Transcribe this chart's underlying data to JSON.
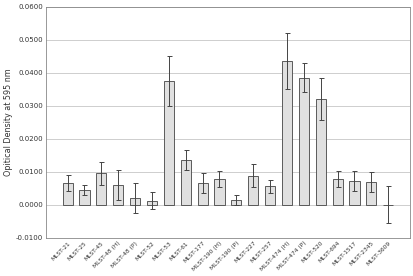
{
  "categories": [
    "MLST-21",
    "MLST-25",
    "MLST-45",
    "MLST-48 (H)",
    "MLST-48 (P)",
    "MLST-52",
    "MLST-53",
    "MLST-61",
    "MLST-177",
    "MLST-190 (H)",
    "MLST-190 (P)",
    "MLST-227",
    "MLST-257",
    "MLST-474 (H)",
    "MLST-474 (P)",
    "MLST-520",
    "MLST-694",
    "MLST-1517",
    "MLST-2345",
    "MLST-3609"
  ],
  "values": [
    0.0065,
    0.0045,
    0.0095,
    0.006,
    0.002,
    0.0012,
    0.0375,
    0.0135,
    0.0065,
    0.0078,
    0.0015,
    0.0088,
    0.0055,
    0.0435,
    0.0385,
    0.032,
    0.0078,
    0.0072,
    0.0068,
    0.0
  ],
  "errors": [
    0.0025,
    0.0015,
    0.0035,
    0.0045,
    0.0045,
    0.0025,
    0.0075,
    0.003,
    0.003,
    0.0025,
    0.0015,
    0.0035,
    0.002,
    0.0085,
    0.0045,
    0.0065,
    0.0025,
    0.003,
    0.003,
    0.0055
  ],
  "bar_color": "#e0e0e0",
  "bar_edge_color": "#444444",
  "error_color": "#444444",
  "ylabel": "Opitical Density at 595 nm",
  "ylim": [
    -0.01,
    0.06
  ],
  "yticks": [
    -0.01,
    0.0,
    0.01,
    0.02,
    0.03,
    0.04,
    0.05,
    0.06
  ],
  "ytick_labels": [
    "-0.0100",
    "0.0000",
    "0.0100",
    "0.0200",
    "0.0300",
    "0.0400",
    "0.0500",
    "0.0600"
  ],
  "grid_color": "#bbbbbb",
  "background_color": "#ffffff",
  "spine_color": "#888888"
}
